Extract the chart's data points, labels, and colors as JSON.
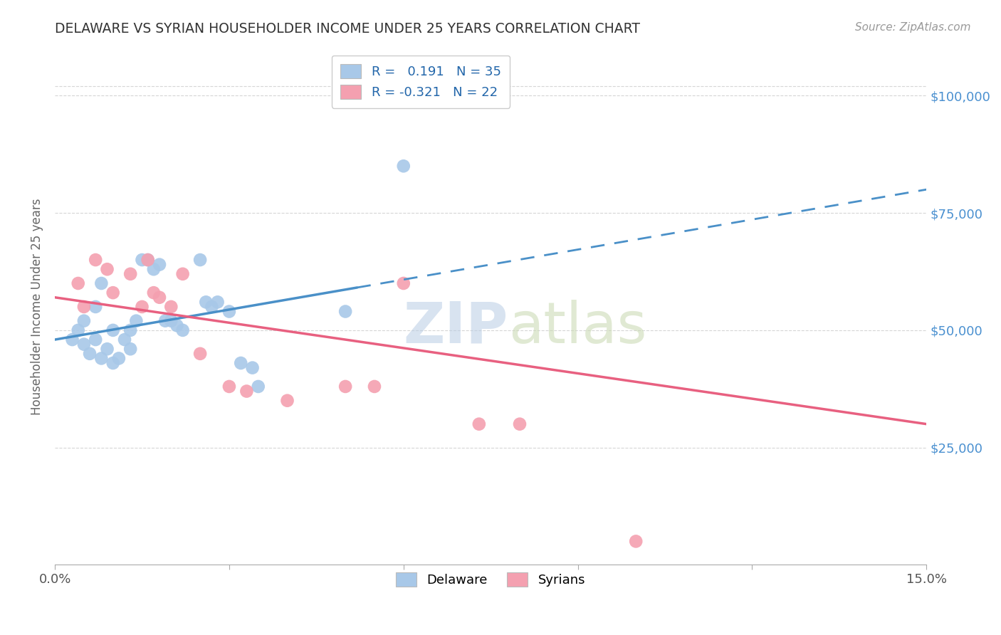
{
  "title": "DELAWARE VS SYRIAN HOUSEHOLDER INCOME UNDER 25 YEARS CORRELATION CHART",
  "source": "Source: ZipAtlas.com",
  "ylabel": "Householder Income Under 25 years",
  "ytick_labels": [
    "$25,000",
    "$50,000",
    "$75,000",
    "$100,000"
  ],
  "ytick_values": [
    25000,
    50000,
    75000,
    100000
  ],
  "ylim": [
    0,
    110000
  ],
  "xlim": [
    0.0,
    0.15
  ],
  "watermark_part1": "ZIP",
  "watermark_part2": "atlas",
  "delaware_R": "0.191",
  "delaware_N": "35",
  "syrian_R": "-0.321",
  "syrian_N": "22",
  "delaware_color": "#a8c8e8",
  "delaware_line_color": "#4a90c8",
  "syrian_color": "#f4a0b0",
  "syrian_line_color": "#e86080",
  "delaware_scatter": [
    [
      0.003,
      48000
    ],
    [
      0.004,
      50000
    ],
    [
      0.005,
      52000
    ],
    [
      0.005,
      47000
    ],
    [
      0.006,
      45000
    ],
    [
      0.007,
      48000
    ],
    [
      0.007,
      55000
    ],
    [
      0.008,
      44000
    ],
    [
      0.008,
      60000
    ],
    [
      0.009,
      46000
    ],
    [
      0.01,
      50000
    ],
    [
      0.01,
      43000
    ],
    [
      0.011,
      44000
    ],
    [
      0.012,
      48000
    ],
    [
      0.013,
      50000
    ],
    [
      0.013,
      46000
    ],
    [
      0.014,
      52000
    ],
    [
      0.015,
      65000
    ],
    [
      0.016,
      65000
    ],
    [
      0.017,
      63000
    ],
    [
      0.018,
      64000
    ],
    [
      0.019,
      52000
    ],
    [
      0.02,
      52000
    ],
    [
      0.021,
      51000
    ],
    [
      0.022,
      50000
    ],
    [
      0.025,
      65000
    ],
    [
      0.026,
      56000
    ],
    [
      0.027,
      55000
    ],
    [
      0.028,
      56000
    ],
    [
      0.03,
      54000
    ],
    [
      0.032,
      43000
    ],
    [
      0.034,
      42000
    ],
    [
      0.035,
      38000
    ],
    [
      0.05,
      54000
    ],
    [
      0.06,
      85000
    ]
  ],
  "syrian_scatter": [
    [
      0.004,
      60000
    ],
    [
      0.005,
      55000
    ],
    [
      0.007,
      65000
    ],
    [
      0.009,
      63000
    ],
    [
      0.01,
      58000
    ],
    [
      0.013,
      62000
    ],
    [
      0.015,
      55000
    ],
    [
      0.016,
      65000
    ],
    [
      0.017,
      58000
    ],
    [
      0.018,
      57000
    ],
    [
      0.02,
      55000
    ],
    [
      0.022,
      62000
    ],
    [
      0.025,
      45000
    ],
    [
      0.03,
      38000
    ],
    [
      0.033,
      37000
    ],
    [
      0.04,
      35000
    ],
    [
      0.05,
      38000
    ],
    [
      0.06,
      60000
    ],
    [
      0.073,
      30000
    ],
    [
      0.08,
      30000
    ],
    [
      0.1,
      5000
    ],
    [
      0.055,
      38000
    ]
  ],
  "background_color": "#ffffff",
  "grid_color": "#cccccc",
  "title_color": "#333333",
  "axis_label_color": "#666666",
  "right_tick_color": "#4a90d0"
}
